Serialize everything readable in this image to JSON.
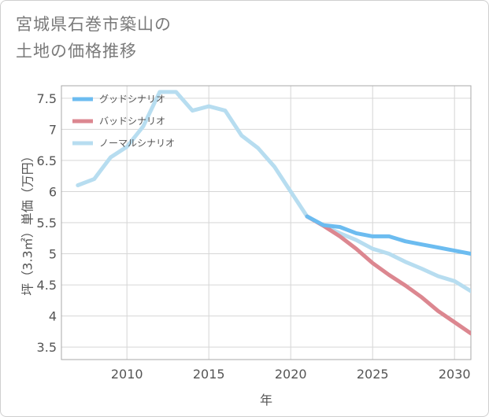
{
  "title": {
    "line1": "宮城県石巻市築山の",
    "line2": "土地の価格推移"
  },
  "colors": {
    "good": "#6cbcf0",
    "bad": "#dc8790",
    "normal": "#b7ddf0",
    "grid": "#d6d6d6",
    "plot_border": "#aaaaaa"
  },
  "chart_data": {
    "type": "line",
    "xlabel": "年",
    "ylabel": "坪（3.3㎡）単価（万円）",
    "xlim": [
      2006,
      2031
    ],
    "ylim": [
      3.3,
      7.7
    ],
    "xticks": [
      2010,
      2015,
      2020,
      2025,
      2030
    ],
    "yticks": [
      3.5,
      4,
      4.5,
      5,
      5.5,
      6,
      6.5,
      7,
      7.5
    ],
    "grid": true,
    "legend_position": "top-left",
    "series": [
      {
        "name": "グッドシナリオ",
        "color": "#6cbcf0",
        "x": [
          2021,
          2022,
          2023,
          2024,
          2025,
          2026,
          2027,
          2028,
          2029,
          2030,
          2031
        ],
        "y": [
          5.6,
          5.46,
          5.43,
          5.33,
          5.28,
          5.28,
          5.2,
          5.15,
          5.1,
          5.05,
          5.0
        ]
      },
      {
        "name": "バッドシナリオ",
        "color": "#dc8790",
        "x": [
          2021,
          2022,
          2023,
          2024,
          2025,
          2026,
          2027,
          2028,
          2029,
          2030,
          2031
        ],
        "y": [
          5.6,
          5.45,
          5.28,
          5.08,
          4.85,
          4.66,
          4.49,
          4.3,
          4.08,
          3.9,
          3.72
        ]
      },
      {
        "name": "ノーマルシナリオ",
        "color": "#b7ddf0",
        "x": [
          2007,
          2008,
          2009,
          2010,
          2011,
          2012,
          2013,
          2014,
          2015,
          2016,
          2017,
          2018,
          2019,
          2020,
          2021,
          2022,
          2023,
          2024,
          2025,
          2026,
          2027,
          2028,
          2029,
          2030,
          2031
        ],
        "y": [
          6.1,
          6.2,
          6.55,
          6.72,
          7.05,
          7.6,
          7.6,
          7.3,
          7.37,
          7.3,
          6.9,
          6.7,
          6.4,
          6.0,
          5.6,
          5.45,
          5.33,
          5.22,
          5.08,
          5.0,
          4.87,
          4.76,
          4.64,
          4.56,
          4.4
        ]
      }
    ]
  }
}
